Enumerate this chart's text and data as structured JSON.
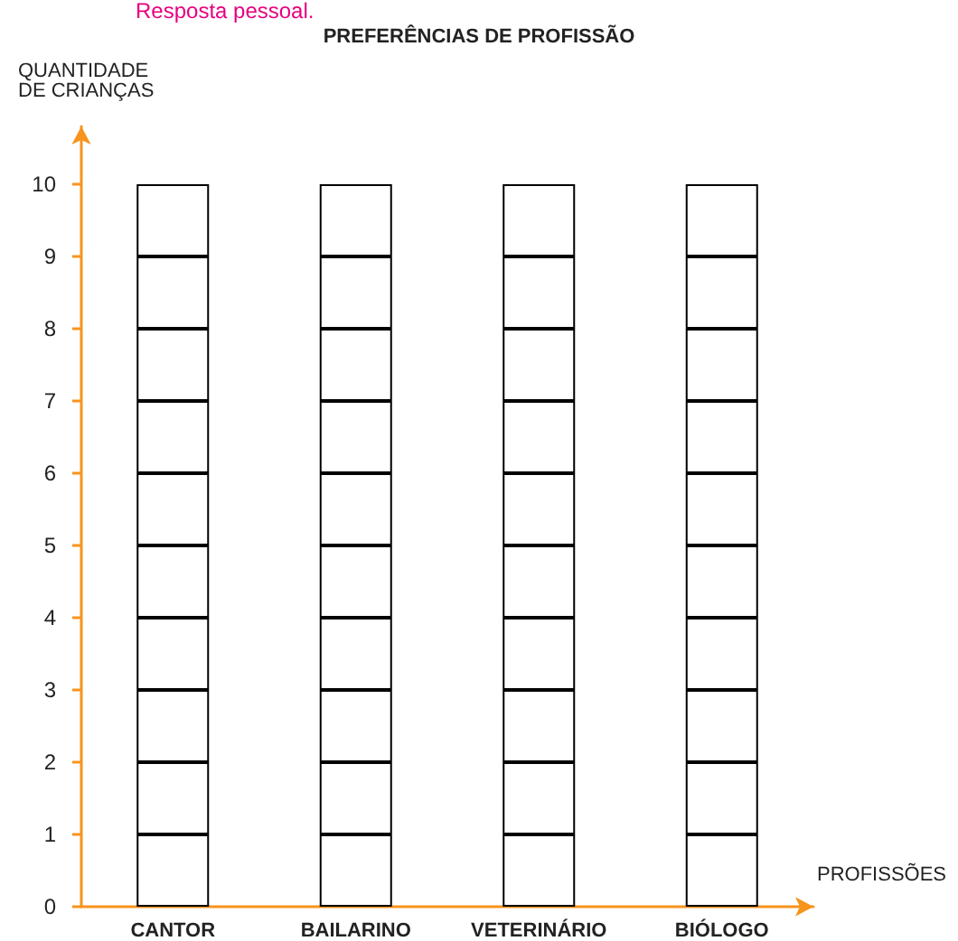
{
  "chart_data": {
    "type": "bar",
    "title": "PREFERÊNCIAS DE PROFISSÃO",
    "ylabel": "QUANTIDADE\nDE CRIANÇAS",
    "xlabel": "PROFISSÕES",
    "annotations": [
      "Resposta pessoal."
    ],
    "categories": [
      "CANTOR",
      "BAILARINO",
      "VETERINÁRIO",
      "BIÓLOGO"
    ],
    "stacked": true,
    "ylim": [
      0,
      10.8
    ],
    "yticks": [
      0,
      1,
      2,
      3,
      4,
      5,
      6,
      7,
      8,
      9,
      10
    ],
    "series": [
      {
        "color": "#ffffff",
        "values": [
          1,
          1,
          1,
          1
        ]
      },
      {
        "color": "#ffffff",
        "values": [
          1,
          1,
          1,
          1
        ]
      },
      {
        "color": "#ffffff",
        "values": [
          1,
          1,
          1,
          1
        ]
      },
      {
        "color": "#ffffff",
        "values": [
          1,
          1,
          1,
          1
        ]
      },
      {
        "color": "#ffffff",
        "values": [
          1,
          1,
          1,
          1
        ]
      },
      {
        "color": "#ffffff",
        "values": [
          1,
          1,
          1,
          1
        ]
      },
      {
        "color": "#ffffff",
        "values": [
          1,
          1,
          1,
          1
        ]
      },
      {
        "color": "#ffffff",
        "values": [
          1,
          1,
          1,
          1
        ]
      },
      {
        "color": "#ffffff",
        "values": [
          1,
          1,
          1,
          1
        ]
      },
      {
        "color": "#ffffff",
        "values": [
          1,
          1,
          1,
          1
        ]
      }
    ]
  }
}
